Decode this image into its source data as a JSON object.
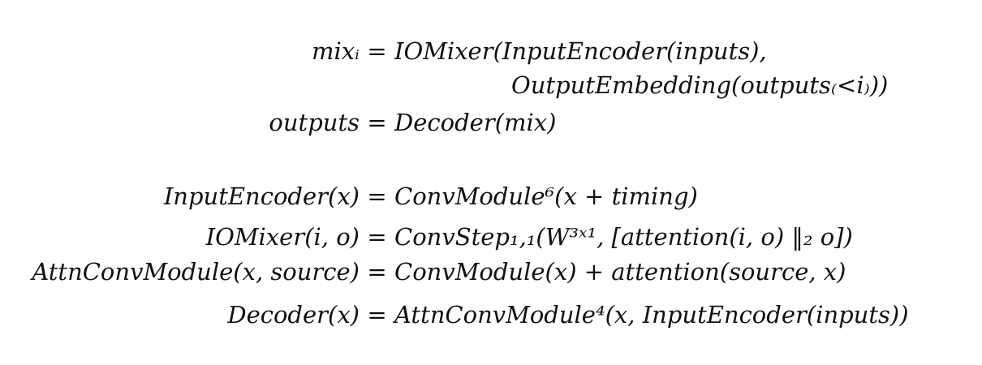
{
  "equations": [
    {
      "lhs": "mixᵢ",
      "eq": "=",
      "rhs": "IOMixer(InputEncoder(inputs),"
    },
    {
      "lhs": "",
      "eq": "",
      "rhs": "OutputEmbedding(outputs₍<i₎))"
    },
    {
      "lhs": "outputs",
      "eq": "=",
      "rhs": "Decoder(mix)"
    },
    {
      "lhs": "InputEncoder(x)",
      "eq": "=",
      "rhs": "ConvModule⁶(x + timing)"
    },
    {
      "lhs": "IOMixer(i, o)",
      "eq": "=",
      "rhs": "ConvStep₁,₁(W³ˣ¹, [attention(i, o) ‖₂ o])"
    },
    {
      "lhs": "AttnConvModule(x, source)",
      "eq": "=",
      "rhs": "ConvModule(x) + attention(source, x)"
    },
    {
      "lhs": "Decoder(x)",
      "eq": "=",
      "rhs": "AttnConvModule⁴(x, InputEncoder(inputs))"
    }
  ]
}
